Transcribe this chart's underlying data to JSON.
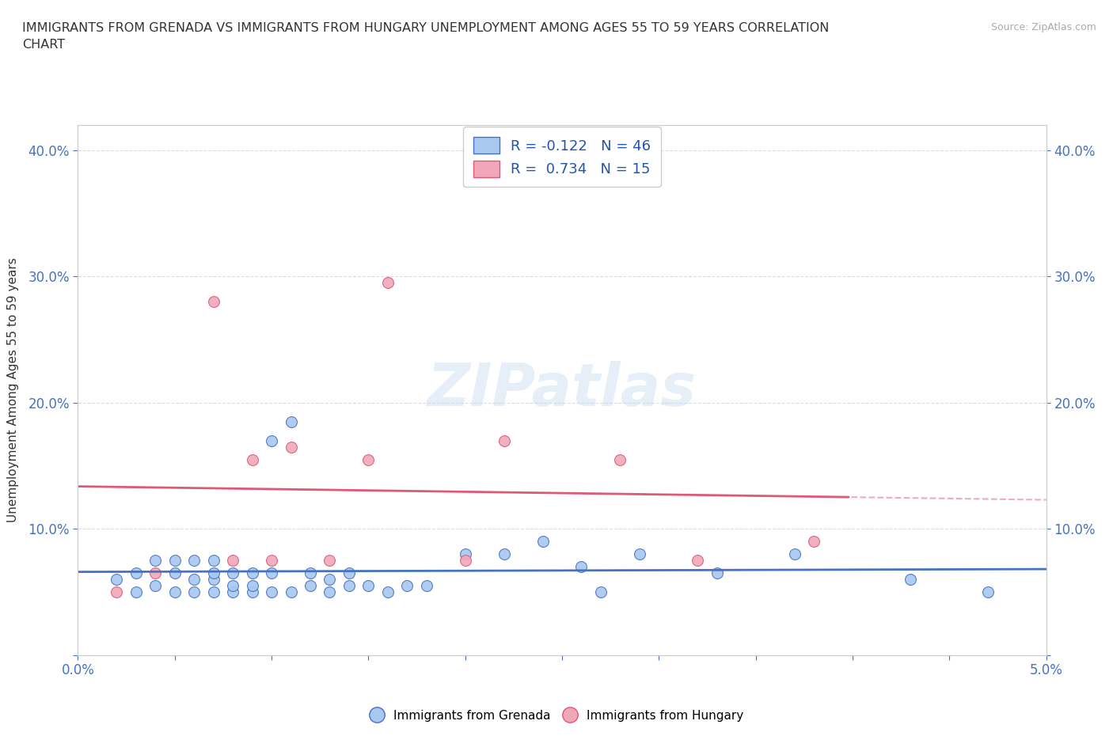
{
  "title": "IMMIGRANTS FROM GRENADA VS IMMIGRANTS FROM HUNGARY UNEMPLOYMENT AMONG AGES 55 TO 59 YEARS CORRELATION\nCHART",
  "source": "Source: ZipAtlas.com",
  "ylabel": "Unemployment Among Ages 55 to 59 years",
  "xlim": [
    0.0,
    0.05
  ],
  "ylim": [
    0.0,
    0.42
  ],
  "xticks": [
    0.0,
    0.005,
    0.01,
    0.015,
    0.02,
    0.025,
    0.03,
    0.035,
    0.04,
    0.045,
    0.05
  ],
  "yticks": [
    0.0,
    0.1,
    0.2,
    0.3,
    0.4
  ],
  "watermark": "ZIPatlas",
  "grenada_color": "#a8c8f0",
  "hungary_color": "#f0a8b8",
  "grenada_line_color": "#4472c4",
  "hungary_line_color": "#e05878",
  "grenada_R": -0.122,
  "grenada_N": 46,
  "hungary_R": 0.734,
  "hungary_N": 15,
  "grenada_x": [
    0.002,
    0.003,
    0.003,
    0.004,
    0.004,
    0.005,
    0.005,
    0.005,
    0.006,
    0.006,
    0.006,
    0.007,
    0.007,
    0.007,
    0.007,
    0.008,
    0.008,
    0.008,
    0.009,
    0.009,
    0.009,
    0.01,
    0.01,
    0.01,
    0.011,
    0.011,
    0.012,
    0.012,
    0.013,
    0.013,
    0.014,
    0.014,
    0.015,
    0.016,
    0.017,
    0.018,
    0.02,
    0.022,
    0.024,
    0.026,
    0.027,
    0.029,
    0.033,
    0.037,
    0.043,
    0.047
  ],
  "grenada_y": [
    0.06,
    0.05,
    0.065,
    0.055,
    0.075,
    0.05,
    0.065,
    0.075,
    0.05,
    0.06,
    0.075,
    0.05,
    0.06,
    0.065,
    0.075,
    0.05,
    0.055,
    0.065,
    0.05,
    0.055,
    0.065,
    0.05,
    0.065,
    0.17,
    0.05,
    0.185,
    0.055,
    0.065,
    0.05,
    0.06,
    0.055,
    0.065,
    0.055,
    0.05,
    0.055,
    0.055,
    0.08,
    0.08,
    0.09,
    0.07,
    0.05,
    0.08,
    0.065,
    0.08,
    0.06,
    0.05
  ],
  "hungary_x": [
    0.002,
    0.004,
    0.007,
    0.008,
    0.009,
    0.01,
    0.011,
    0.013,
    0.015,
    0.016,
    0.02,
    0.022,
    0.028,
    0.032,
    0.038
  ],
  "hungary_y": [
    0.05,
    0.065,
    0.28,
    0.075,
    0.155,
    0.075,
    0.165,
    0.075,
    0.155,
    0.295,
    0.075,
    0.17,
    0.155,
    0.075,
    0.09
  ],
  "background_color": "#ffffff",
  "grid_color": "#dddddd"
}
